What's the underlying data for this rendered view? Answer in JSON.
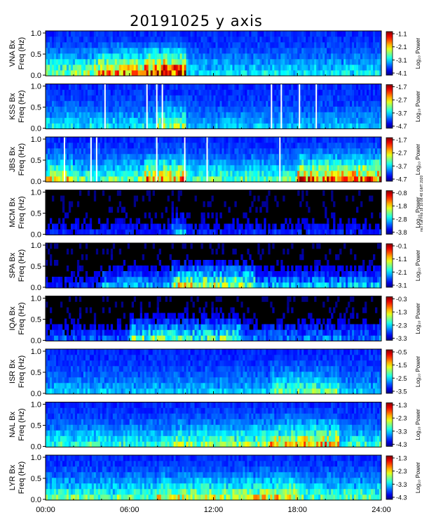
{
  "chart_data": {
    "type": "heatmap",
    "title": "20191025 y axis",
    "x_range": [
      0,
      24
    ],
    "x_unit": "hours UT",
    "xtick_labels": [
      "00:00",
      "06:00",
      "12:00",
      "18:00",
      "24:00"
    ],
    "ytick_labels": [
      "0.0",
      "0.5",
      "1.0"
    ],
    "colorbar_label": "Log₁₀ Power",
    "panels": [
      {
        "station": "VNA Bx",
        "ylabel": "Freq (Hz)",
        "ylim": [
          0,
          1
        ],
        "cbar_ticks": [
          "-1.1",
          "-2.1",
          "-3.1",
          "-4.1"
        ],
        "cbar_range": [
          -4.1,
          -1.1
        ],
        "background_power": "medium",
        "gaps": [],
        "activity": [
          {
            "start": 0,
            "end": 3.5,
            "level": 0.35
          },
          {
            "start": 3.5,
            "end": 7,
            "level": 0.55
          },
          {
            "start": 7,
            "end": 10,
            "level": 0.75
          },
          {
            "start": 10,
            "end": 24,
            "level": 0.2
          }
        ]
      },
      {
        "station": "KSS Bx",
        "ylabel": "Freq (Hz)",
        "ylim": [
          0,
          1
        ],
        "cbar_ticks": [
          "-1.7",
          "-2.7",
          "-3.7",
          "-4.7"
        ],
        "cbar_range": [
          -4.7,
          -1.7
        ],
        "background_power": "low",
        "gaps": [
          4.2,
          7.2,
          7.9,
          8.3,
          16.1,
          16.8,
          18.1,
          19.3
        ],
        "activity": [
          {
            "start": 0,
            "end": 8,
            "level": 0.2
          },
          {
            "start": 8,
            "end": 10,
            "level": 0.35
          },
          {
            "start": 10,
            "end": 24,
            "level": 0.15
          }
        ]
      },
      {
        "station": "JBS Bx",
        "ylabel": "Freq (Hz)",
        "ylim": [
          0,
          1
        ],
        "cbar_ticks": [
          "-1.7",
          "-2.7",
          "-3.7",
          "-4.7"
        ],
        "cbar_range": [
          -4.7,
          -1.7
        ],
        "background_power": "low",
        "gaps": [
          1.3,
          3.2,
          3.6,
          7.9,
          9.9,
          11.5,
          16.7
        ],
        "activity": [
          {
            "start": 0,
            "end": 2,
            "level": 0.45
          },
          {
            "start": 2,
            "end": 7,
            "level": 0.3
          },
          {
            "start": 7,
            "end": 10,
            "level": 0.55
          },
          {
            "start": 10,
            "end": 18,
            "level": 0.3
          },
          {
            "start": 18,
            "end": 24,
            "level": 0.6
          }
        ]
      },
      {
        "station": "MCM Bx",
        "ylabel": "Freq (Hz)",
        "ylim": [
          0,
          1
        ],
        "cbar_ticks": [
          "-0.8",
          "-1.8",
          "-2.8",
          "-3.8"
        ],
        "cbar_range": [
          -3.8,
          -0.8
        ],
        "background_power": "none",
        "gaps": [],
        "activity": [
          {
            "start": 0,
            "end": 9,
            "level": 0.15
          },
          {
            "start": 9,
            "end": 10,
            "level": 0.3
          },
          {
            "start": 10,
            "end": 24,
            "level": 0.15
          }
        ]
      },
      {
        "station": "SPA Bx",
        "ylabel": "Freq (Hz)",
        "ylim": [
          0,
          1
        ],
        "cbar_ticks": [
          "-0.1",
          "-1.1",
          "-2.1",
          "-3.1"
        ],
        "cbar_range": [
          -3.1,
          -0.1
        ],
        "background_power": "none",
        "gaps": [],
        "activity": [
          {
            "start": 0,
            "end": 4,
            "level": 0.15
          },
          {
            "start": 4,
            "end": 9,
            "level": 0.3
          },
          {
            "start": 9,
            "end": 15,
            "level": 0.55
          },
          {
            "start": 15,
            "end": 24,
            "level": 0.3
          }
        ]
      },
      {
        "station": "IQA Bx",
        "ylabel": "Freq (Hz)",
        "ylim": [
          0,
          1
        ],
        "cbar_ticks": [
          "-0.3",
          "-1.3",
          "-2.3",
          "-3.3"
        ],
        "cbar_range": [
          -3.3,
          -0.3
        ],
        "background_power": "none",
        "gaps": [],
        "activity": [
          {
            "start": 0,
            "end": 6,
            "level": 0.2
          },
          {
            "start": 6,
            "end": 9,
            "level": 0.45
          },
          {
            "start": 9,
            "end": 14,
            "level": 0.45
          },
          {
            "start": 14,
            "end": 24,
            "level": 0.25
          }
        ]
      },
      {
        "station": "ISR Bx",
        "ylabel": "Freq (Hz)",
        "ylim": [
          0,
          1
        ],
        "cbar_ticks": [
          "-0.5",
          "-1.5",
          "-2.5",
          "-3.5"
        ],
        "cbar_range": [
          -3.5,
          -0.5
        ],
        "background_power": "low",
        "gaps": [],
        "activity": [
          {
            "start": 0,
            "end": 16,
            "level": 0.15
          },
          {
            "start": 16,
            "end": 21,
            "level": 0.3
          },
          {
            "start": 21,
            "end": 24,
            "level": 0.15
          }
        ]
      },
      {
        "station": "NAL Bx",
        "ylabel": "Freq (Hz)",
        "ylim": [
          0,
          1
        ],
        "cbar_ticks": [
          "-1.3",
          "-2.3",
          "-3.3",
          "-4.3"
        ],
        "cbar_range": [
          -4.3,
          -1.3
        ],
        "background_power": "medium",
        "gaps": [],
        "activity": [
          {
            "start": 0,
            "end": 9,
            "level": 0.25
          },
          {
            "start": 9,
            "end": 16,
            "level": 0.35
          },
          {
            "start": 16,
            "end": 21,
            "level": 0.5
          },
          {
            "start": 21,
            "end": 24,
            "level": 0.25
          }
        ]
      },
      {
        "station": "LYR Bx",
        "ylabel": "Freq (Hz)",
        "ylim": [
          0,
          1
        ],
        "cbar_ticks": [
          "-1.3",
          "-2.3",
          "-3.3",
          "-4.3"
        ],
        "cbar_range": [
          -4.3,
          -1.3
        ],
        "background_power": "medium",
        "gaps": [],
        "activity": [
          {
            "start": 0,
            "end": 8,
            "level": 0.3
          },
          {
            "start": 8,
            "end": 14,
            "level": 0.4
          },
          {
            "start": 14,
            "end": 18,
            "level": 0.45
          },
          {
            "start": 18,
            "end": 24,
            "level": 0.3
          }
        ]
      }
    ]
  },
  "footer": {
    "stamp": "mcl Tue Feb 18 10:08:48 GMT 2020"
  }
}
